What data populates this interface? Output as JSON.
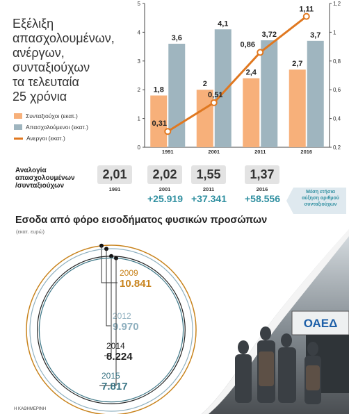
{
  "title_lines": [
    "Εξέλιξη",
    "απασχολουμένων,",
    "ανέργων,",
    "συνταξιούχων",
    "τα τελευταία",
    "25 χρόνια"
  ],
  "legend": [
    {
      "label": "Συνταξιούχοι (εκατ.)",
      "color": "#f7b07a",
      "kind": "bar"
    },
    {
      "label": "Απασχολούμενοι (εκατ.)",
      "color": "#9fb5bf",
      "kind": "bar"
    },
    {
      "label": "Ανεργοι (εκατ.)",
      "color": "#e07820",
      "kind": "line"
    }
  ],
  "chart_data": {
    "type": "bar",
    "categories": [
      "1991",
      "2001",
      "2011",
      "2016"
    ],
    "series": [
      {
        "name": "Συνταξιούχοι (εκατ.)",
        "type": "bar",
        "values": [
          1.8,
          2,
          2.4,
          2.7
        ],
        "labels": [
          "1,8",
          "2",
          "2,4",
          "2,7"
        ],
        "color": "#f7b07a"
      },
      {
        "name": "Απασχολούμενοι (εκατ.)",
        "type": "bar",
        "values": [
          3.6,
          4.1,
          3.72,
          3.7
        ],
        "labels": [
          "3,6",
          "4,1",
          "3,72",
          "3,7"
        ],
        "color": "#9fb5bf"
      },
      {
        "name": "Ανεργοι (εκατ.)",
        "type": "line",
        "axis": "right",
        "values": [
          0.31,
          0.51,
          0.86,
          1.11
        ],
        "labels": [
          "0,31",
          "0,51",
          "0,86",
          "1,11"
        ],
        "color": "#e07820"
      }
    ],
    "left_axis": {
      "range": [
        0,
        5
      ],
      "ticks": [
        "0",
        "1",
        "2",
        "3",
        "4",
        "5"
      ]
    },
    "right_axis": {
      "range": [
        0.2,
        1.2
      ],
      "ticks": [
        "0,2",
        "0,4",
        "0,6",
        "0,8",
        "1",
        "1,2"
      ]
    }
  },
  "ratio": {
    "label_lines": [
      "Αναλογία",
      "απασχολουμένων",
      "/συνταξιούχων"
    ],
    "items": [
      {
        "value": "2,01",
        "year": "1991",
        "increase": ""
      },
      {
        "value": "2,02",
        "year": "2001",
        "increase": "+25.919"
      },
      {
        "value": "1,55",
        "year": "2011",
        "increase": "+37.341"
      },
      {
        "value": "1,37",
        "year": "2016",
        "increase": "+58.556"
      }
    ],
    "note_lines": [
      "Μέση ετήσια",
      "αύξηση αριθμού",
      "συνταξιούχων"
    ]
  },
  "income": {
    "title": "Εσοδα από φόρο εισοδήματος φυσικών προσώπων",
    "unit": "(εκατ. ευρώ)",
    "items": [
      {
        "year": "2009",
        "value": "10.841",
        "amount": 10841,
        "color": "#c8831c"
      },
      {
        "year": "2012",
        "value": "9.970",
        "amount": 9970,
        "color": "#8fb0bf"
      },
      {
        "year": "2014",
        "value": "8.224",
        "amount": 8224,
        "color": "#222222"
      },
      {
        "year": "2015",
        "value": "7.817",
        "amount": 7817,
        "color": "#3b7585"
      }
    ]
  },
  "credit": "Η ΚΑΘΗΜΕΡΙΝΗ",
  "photo_sign": "ΟΑΕΔ"
}
